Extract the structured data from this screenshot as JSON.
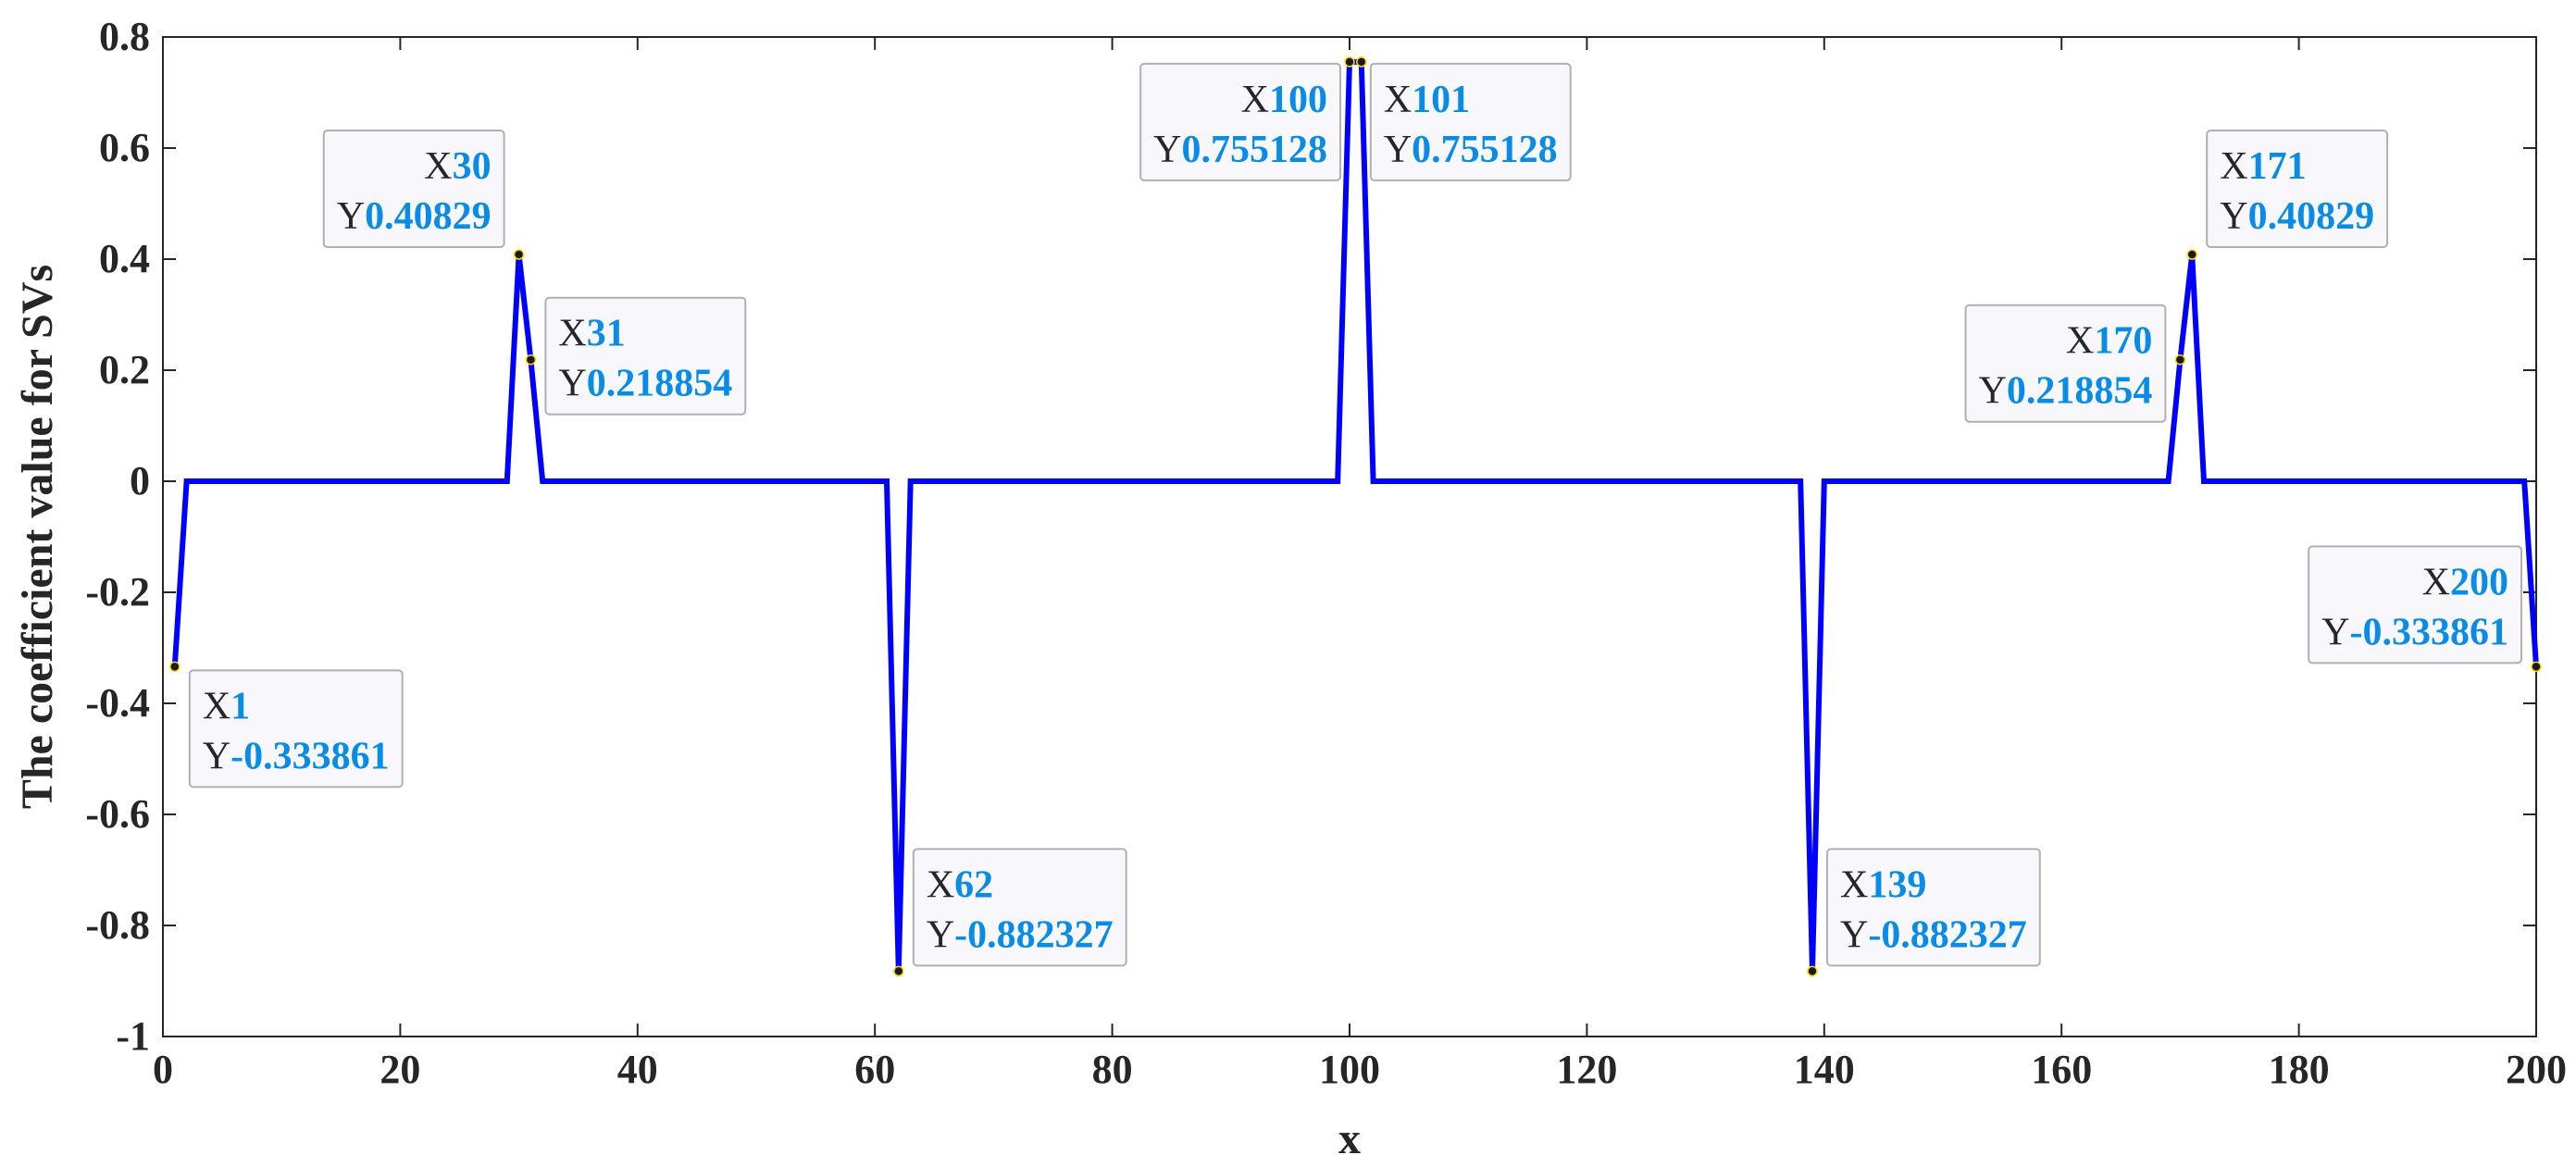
{
  "chart_data": {
    "type": "line",
    "title": "",
    "xlabel": "x",
    "ylabel": "The coefficient value for SVs",
    "xlim": [
      0,
      200
    ],
    "ylim": [
      -1,
      0.8
    ],
    "xticks": [
      0,
      20,
      40,
      60,
      80,
      100,
      120,
      140,
      160,
      180,
      200
    ],
    "xtick_labels": [
      "0",
      "20",
      "40",
      "60",
      "80",
      "100",
      "120",
      "140",
      "160",
      "180",
      "200"
    ],
    "yticks": [
      0.8,
      0.6,
      0.4,
      0.2,
      0,
      -0.2,
      -0.4,
      -0.6,
      -0.8,
      -1
    ],
    "ytick_labels": [
      "0.8",
      "0.6",
      "0.4",
      "0.2",
      "0",
      "-0.2",
      "-0.4",
      "-0.6",
      "-0.8",
      "-1"
    ],
    "grid": false,
    "colors": {
      "line": "#0000ff",
      "tip_value": "#0a8ce6",
      "tip_box": "#f8f8fc",
      "tip_border": "#b0b0b0"
    },
    "series": [
      {
        "x": [
          1,
          2,
          29,
          30,
          31,
          32,
          61,
          62,
          63,
          99,
          100,
          101,
          102,
          138,
          139,
          140,
          169,
          170,
          171,
          172,
          199,
          200
        ],
        "y": [
          -0.333861,
          0,
          0,
          0.40829,
          0.218854,
          0,
          0,
          -0.882327,
          0,
          0,
          0.755128,
          0.755128,
          0,
          0,
          -0.882327,
          0,
          0,
          0.218854,
          0.40829,
          0,
          0,
          -0.333861
        ]
      }
    ],
    "datatips": [
      {
        "x": 1,
        "y": -0.333861,
        "x_label": "X",
        "y_label": "Y",
        "x_text": "1",
        "y_text": "-0.333861"
      },
      {
        "x": 30,
        "y": 0.40829,
        "x_label": "X",
        "y_label": "Y",
        "x_text": "30",
        "y_text": "0.40829"
      },
      {
        "x": 31,
        "y": 0.218854,
        "x_label": "X",
        "y_label": "Y",
        "x_text": "31",
        "y_text": "0.218854"
      },
      {
        "x": 62,
        "y": -0.882327,
        "x_label": "X",
        "y_label": "Y",
        "x_text": "62",
        "y_text": "-0.882327"
      },
      {
        "x": 100,
        "y": 0.755128,
        "x_label": "X",
        "y_label": "Y",
        "x_text": "100",
        "y_text": "0.755128"
      },
      {
        "x": 101,
        "y": 0.755128,
        "x_label": "X",
        "y_label": "Y",
        "x_text": "101",
        "y_text": "0.755128"
      },
      {
        "x": 139,
        "y": -0.882327,
        "x_label": "X",
        "y_label": "Y",
        "x_text": "139",
        "y_text": "-0.882327"
      },
      {
        "x": 170,
        "y": 0.218854,
        "x_label": "X",
        "y_label": "Y",
        "x_text": "170",
        "y_text": "0.218854"
      },
      {
        "x": 171,
        "y": 0.40829,
        "x_label": "X",
        "y_label": "Y",
        "x_text": "171",
        "y_text": "0.40829"
      },
      {
        "x": 200,
        "y": -0.333861,
        "x_label": "X",
        "y_label": "Y",
        "x_text": "200",
        "y_text": "-0.333861"
      }
    ]
  }
}
